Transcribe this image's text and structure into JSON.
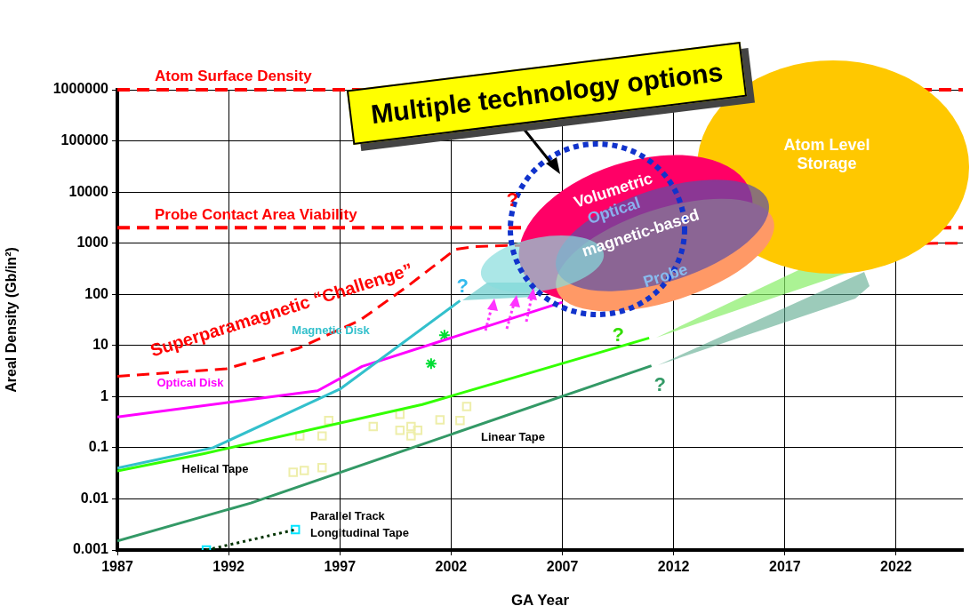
{
  "chart_data": {
    "type": "line",
    "xlabel": "GA Year",
    "ylabel": "Areal Density (Gb/in²)",
    "log": "y",
    "grid": true,
    "legend": false,
    "xlim": [
      1987,
      2025
    ],
    "xticks": [
      1987,
      1992,
      1997,
      2002,
      2007,
      2012,
      2017,
      2022
    ],
    "ylim": [
      0.001,
      1000000
    ],
    "yticks": [
      0.001,
      0.01,
      0.1,
      1,
      10,
      100,
      1000,
      10000,
      100000,
      1000000
    ],
    "ref_lines": [
      {
        "axis": "y",
        "value": 1000000,
        "label": "Atom Surface Density",
        "color": "#ff0000",
        "line_style": "dashed"
      },
      {
        "axis": "y",
        "value": 2000,
        "label": "Probe Contact Area Viability",
        "color": "#ff0000",
        "line_style": "dashed"
      }
    ],
    "series": [
      {
        "name": "Superparamagnetic “Challenge”",
        "color": "#ff0000",
        "line_style": "dashed",
        "marker": "none",
        "x": [
          1987,
          1991.9,
          1995.1,
          1997.9,
          2000.1,
          2002.2,
          2003.1,
          2004.6,
          2025
        ],
        "values": [
          2.5,
          3.5,
          8.7,
          31,
          150,
          760,
          860,
          900,
          1000
        ]
      },
      {
        "name": "Magnetic Disk",
        "color": "#33c0cc",
        "line_style": "solid",
        "marker": "none",
        "x": [
          1987,
          1991.3,
          1997,
          2002.4
        ],
        "values": [
          0.04,
          0.1,
          1.4,
          75
        ]
      },
      {
        "name": "Optical Disk",
        "color": "#ff00ff",
        "line_style": "solid",
        "marker": "none",
        "x": [
          1987,
          1996,
          1998,
          2007
        ],
        "values": [
          0.4,
          1.3,
          3.9,
          70
        ]
      },
      {
        "name": "Helical Tape",
        "color": "#33ff00",
        "line_style": "solid",
        "marker": "none",
        "x": [
          1987,
          1990.9,
          2000.7,
          2010.9
        ],
        "values": [
          0.035,
          0.077,
          0.7,
          14
        ]
      },
      {
        "name": "Linear Tape",
        "color": "#339966",
        "line_style": "solid",
        "marker": "none",
        "x": [
          1987,
          1993,
          2011
        ],
        "values": [
          0.0015,
          0.0083,
          4
        ]
      },
      {
        "name": "Parallel Track Longitudinal Tape",
        "color": "#003300",
        "line_style": "dotted",
        "marker": "none",
        "x": [
          1991,
          1995
        ],
        "values": [
          0.001,
          0.0025
        ]
      },
      {
        "type": "scatter",
        "color": "#00dd33",
        "marker": "cross",
        "x": [
          2001.7,
          2001.1
        ],
        "values": [
          15.8,
          4.4
        ]
      },
      {
        "type": "scatter",
        "color": "#eeeeaa",
        "marker": "square",
        "x": [
          1995.2,
          1996.2,
          1996.5,
          1998.5,
          1999.7,
          1999.7,
          2000.2,
          2000.2,
          2000.5,
          2001.5,
          2002.4,
          2002.7,
          1994.9,
          1995.4,
          1996.2
        ],
        "values": [
          0.17,
          0.17,
          0.34,
          0.26,
          0.45,
          0.22,
          0.26,
          0.17,
          0.22,
          0.35,
          0.34,
          0.64,
          0.033,
          0.036,
          0.041
        ]
      },
      {
        "type": "scatter",
        "color": "#00e5ff",
        "marker": "square",
        "x": [
          1991,
          1995
        ],
        "values": [
          0.001,
          0.0025
        ]
      }
    ],
    "annotations": [
      "Multiple technology options",
      "Atom Level Storage",
      "Volumetric",
      "Optical",
      "magnetic-based",
      "Probe",
      "?",
      "?",
      "?",
      "?"
    ]
  }
}
